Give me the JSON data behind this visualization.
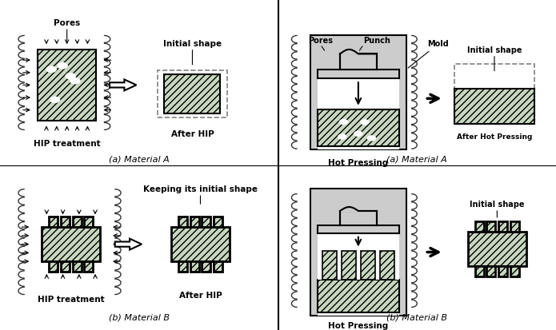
{
  "bg_color": "#ffffff",
  "hatch_fill": "#c8d8c0",
  "gray_fill": "#cccccc",
  "dark_gray": "#888888",
  "coil_color": "#333333",
  "black": "#000000",
  "white": "#ffffff",
  "panel_A_left": "(a) Material A",
  "panel_B_left": "(b) Material B",
  "panel_A_right": "(a) Material A",
  "panel_B_right": "(b) Material B"
}
